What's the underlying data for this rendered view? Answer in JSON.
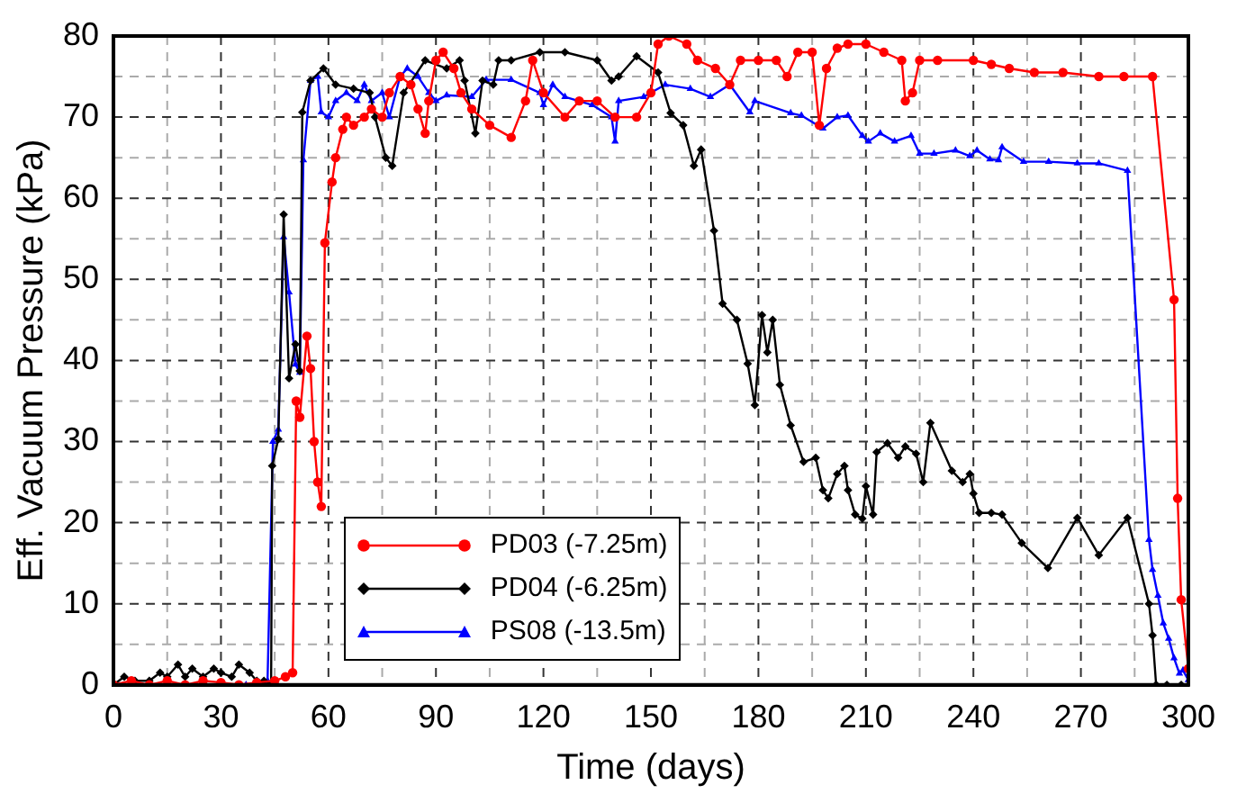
{
  "chart_data": {
    "type": "line",
    "xlabel": "Time (days)",
    "ylabel": "Eff. Vacuum Pressure (kPa)",
    "xlim": [
      0,
      300
    ],
    "ylim": [
      0,
      80
    ],
    "xticks": [
      0,
      {
        "value": 15,
        "label": null
      },
      30,
      {
        "value": 45,
        "label": null
      },
      60,
      {
        "value": 75,
        "label": null
      },
      90,
      {
        "value": 105,
        "label": null
      },
      120,
      {
        "value": 135,
        "label": null
      },
      150,
      {
        "value": 165,
        "label": null
      },
      180,
      {
        "value": 195,
        "label": null
      },
      210,
      {
        "value": 225,
        "label": null
      },
      240,
      {
        "value": 255,
        "label": null
      },
      270,
      {
        "value": 285,
        "label": null
      },
      300
    ],
    "yticks": [
      0,
      {
        "value": 5,
        "label": null
      },
      10,
      {
        "value": 15,
        "label": null
      },
      20,
      {
        "value": 25,
        "label": null
      },
      30,
      {
        "value": 35,
        "label": null
      },
      40,
      {
        "value": 45,
        "label": null
      },
      50,
      {
        "value": 55,
        "label": null
      },
      60,
      {
        "value": 65,
        "label": null
      },
      70,
      {
        "value": 75,
        "label": null
      },
      80
    ],
    "grid": true,
    "legend": "bottom",
    "line_style": "solid",
    "series": [
      {
        "name": "PD03 (-7.25m)",
        "color": "#ff0000",
        "marker": "circle",
        "x": [
          0,
          5,
          10,
          15,
          20,
          25,
          30,
          35,
          40,
          45,
          48,
          50,
          51,
          52,
          54,
          55,
          56,
          57,
          58,
          59,
          61,
          62,
          64,
          65,
          67,
          70,
          72,
          75,
          77,
          80,
          83,
          85,
          87,
          88,
          90,
          92,
          95,
          97,
          100,
          105,
          111,
          115,
          117,
          120,
          126,
          130,
          135,
          140,
          146,
          150,
          152,
          155,
          160,
          163,
          168,
          172,
          175,
          180,
          185,
          188,
          191,
          195,
          197,
          199,
          202,
          205,
          210,
          215,
          220,
          221,
          223,
          225,
          230,
          240,
          245,
          250,
          257,
          265,
          275,
          282,
          290,
          296,
          297,
          298,
          300
        ],
        "values": [
          0,
          0.5,
          0,
          0.5,
          0,
          0.5,
          0.3,
          0,
          0.3,
          0.5,
          1,
          1.5,
          35,
          33,
          43,
          39,
          30,
          25,
          22,
          54.5,
          62,
          65,
          68.5,
          70,
          69,
          70,
          71,
          70,
          73,
          75,
          74,
          71,
          68,
          72,
          77,
          78,
          76,
          73,
          71,
          69,
          67.5,
          72,
          77,
          73,
          70,
          72,
          72,
          70,
          70,
          73,
          79,
          80,
          79,
          77,
          76,
          74,
          77,
          77,
          77,
          75,
          78,
          78,
          69,
          76,
          78.5,
          79,
          79,
          78,
          77,
          72,
          73,
          77,
          77,
          77,
          76.5,
          76,
          75.5,
          75.5,
          75,
          75,
          75,
          47.5,
          23,
          10.5,
          2
        ]
      },
      {
        "name": "PD04 (-6.25m)",
        "color": "#000000",
        "marker": "diamond",
        "x": [
          0,
          3,
          6,
          10,
          13,
          15,
          18,
          20,
          22,
          25,
          28,
          30,
          33,
          35,
          38,
          40,
          42,
          44,
          44.3,
          46,
          47.5,
          49,
          50.8,
          52,
          52.7,
          55,
          58.6,
          62,
          67,
          71.5,
          73,
          76,
          77.8,
          81,
          87,
          93,
          96.6,
          98,
          101,
          103,
          106,
          107.5,
          111,
          119,
          126,
          135,
          139,
          141,
          146,
          152,
          155.5,
          159,
          162,
          164,
          167.6,
          170,
          174,
          177,
          179,
          181,
          182.5,
          184,
          186,
          189,
          192.6,
          196,
          198,
          199.5,
          202,
          204,
          205,
          207,
          209,
          210,
          212,
          213,
          216,
          219,
          221,
          224,
          226,
          228,
          234,
          237,
          239,
          240,
          241.6,
          245,
          248,
          253.5,
          260.8,
          269,
          275,
          283,
          289,
          290,
          291,
          294,
          298
        ],
        "values": [
          0,
          1,
          0.5,
          0.5,
          1.5,
          1,
          2.5,
          1,
          2,
          1,
          2,
          1.5,
          1,
          2.5,
          1.5,
          0.5,
          0.5,
          0.2,
          27,
          30.3,
          58,
          37.8,
          42,
          38.7,
          70.6,
          74.5,
          76,
          74,
          73.5,
          73,
          70,
          65,
          64,
          73,
          77,
          76,
          77,
          74.5,
          68,
          74.5,
          74,
          77,
          77,
          78,
          78,
          77,
          74.5,
          75,
          77.5,
          75.5,
          70.5,
          69,
          64,
          66,
          56,
          47,
          45,
          39.6,
          34.5,
          45.6,
          41,
          45,
          37,
          32,
          27.5,
          28,
          24,
          23,
          26,
          27,
          24,
          21,
          20.5,
          24.5,
          21,
          28.7,
          29.8,
          28,
          29.4,
          28.5,
          25,
          32.3,
          26.4,
          25,
          26,
          23.6,
          21.2,
          21.2,
          21,
          17.5,
          14.4,
          20.6,
          16,
          20.6,
          10,
          6.1,
          0,
          0,
          0
        ]
      },
      {
        "name": "PS08 (-13.5m)",
        "color": "#0000ff",
        "marker": "triangle",
        "x": [
          37,
          40,
          43,
          44.5,
          46,
          47.5,
          49,
          50.8,
          52,
          53,
          55,
          57,
          58,
          60,
          62,
          65,
          68,
          70,
          72,
          75,
          77,
          80,
          82,
          85,
          88,
          90,
          93,
          100,
          104,
          111,
          119,
          120,
          122.6,
          126,
          133.6,
          139,
          140,
          141,
          148,
          154,
          161,
          166.6,
          172,
          177.6,
          179,
          189,
          192,
          198,
          202,
          205,
          209,
          210.7,
          214,
          218,
          222.6,
          225,
          229,
          235,
          239,
          241,
          244.6,
          247,
          248,
          254,
          261,
          269,
          275,
          283,
          289,
          290,
          291.5,
          293,
          294.5,
          296,
          297.5,
          298.5,
          300
        ],
        "values": [
          0,
          0,
          0.5,
          30,
          31.5,
          55.2,
          48.4,
          39.5,
          38.5,
          64.7,
          74.5,
          75,
          70.6,
          70,
          72,
          73,
          72,
          74,
          72,
          73,
          70,
          75,
          76,
          75,
          73,
          72,
          72.7,
          72.5,
          74.6,
          74.6,
          73,
          71.5,
          74,
          72.5,
          71.5,
          70,
          67,
          72,
          72.5,
          74,
          73.5,
          72.5,
          74,
          70.6,
          72,
          70.5,
          70.2,
          68.6,
          70,
          70.2,
          67.7,
          67,
          68,
          67,
          67.7,
          65.5,
          65.5,
          65.9,
          65.2,
          65.9,
          64.8,
          64.7,
          66.3,
          64.5,
          64.5,
          64.3,
          64.3,
          63.4,
          17.9,
          14.2,
          11,
          7.6,
          5.7,
          3.3,
          1.4,
          1.8,
          0.6
        ]
      }
    ]
  }
}
